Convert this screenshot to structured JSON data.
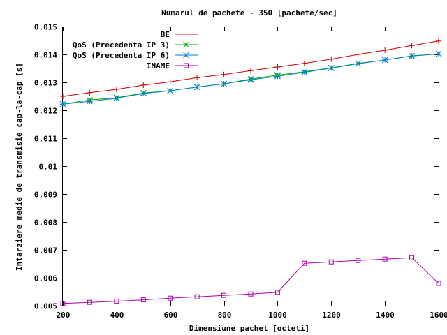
{
  "chart_data": {
    "type": "line",
    "title": "Numarul de pachete - 350 [pachete/sec]",
    "xlabel": "Dimensiune pachet [octeti]",
    "ylabel": "Intarziere medie de transmisie cap-la-cap [s]",
    "xlim": [
      200,
      1600
    ],
    "ylim": [
      0.005,
      0.015
    ],
    "x_ticks": [
      200,
      400,
      600,
      800,
      1000,
      1200,
      1400,
      1600
    ],
    "y_ticks": [
      "0.005",
      "0.006",
      "0.007",
      "0.008",
      "0.009",
      "0.01",
      "0.011",
      "0.012",
      "0.013",
      "0.014",
      "0.015"
    ],
    "grid": false,
    "legend_position": "top-right",
    "x": [
      200,
      300,
      400,
      500,
      600,
      700,
      800,
      900,
      1000,
      1100,
      1200,
      1300,
      1400,
      1500,
      1600
    ],
    "series": [
      {
        "name": "BE",
        "color": "#cc0000",
        "marker": "plus",
        "values": [
          0.0125,
          0.01263,
          0.01275,
          0.0129,
          0.01302,
          0.01317,
          0.01328,
          0.01342,
          0.01355,
          0.01368,
          0.01383,
          0.014,
          0.01415,
          0.01432,
          0.01448
        ]
      },
      {
        "name": "QoS (Precedenta IP 3)",
        "color": "#00aa00",
        "marker": "cross",
        "values": [
          0.01222,
          0.01237,
          0.01245,
          0.01262,
          0.0127,
          0.01283,
          0.01295,
          0.01312,
          0.01326,
          0.01338,
          0.01352,
          0.01368,
          0.0138,
          0.01395,
          0.01402
        ]
      },
      {
        "name": "QoS (Precedenta IP 6)",
        "color": "#0080cc",
        "marker": "star",
        "values": [
          0.01222,
          0.01232,
          0.01243,
          0.0126,
          0.0127,
          0.01283,
          0.01295,
          0.01309,
          0.01322,
          0.01336,
          0.01351,
          0.01367,
          0.0138,
          0.01394,
          0.01402
        ]
      },
      {
        "name": "INAME",
        "color": "#aa00aa",
        "marker": "square",
        "values": [
          0.00508,
          0.00512,
          0.00516,
          0.00521,
          0.00527,
          0.00532,
          0.00537,
          0.00542,
          0.00548,
          0.00652,
          0.00657,
          0.00662,
          0.00667,
          0.00672,
          0.0058
        ]
      }
    ]
  }
}
